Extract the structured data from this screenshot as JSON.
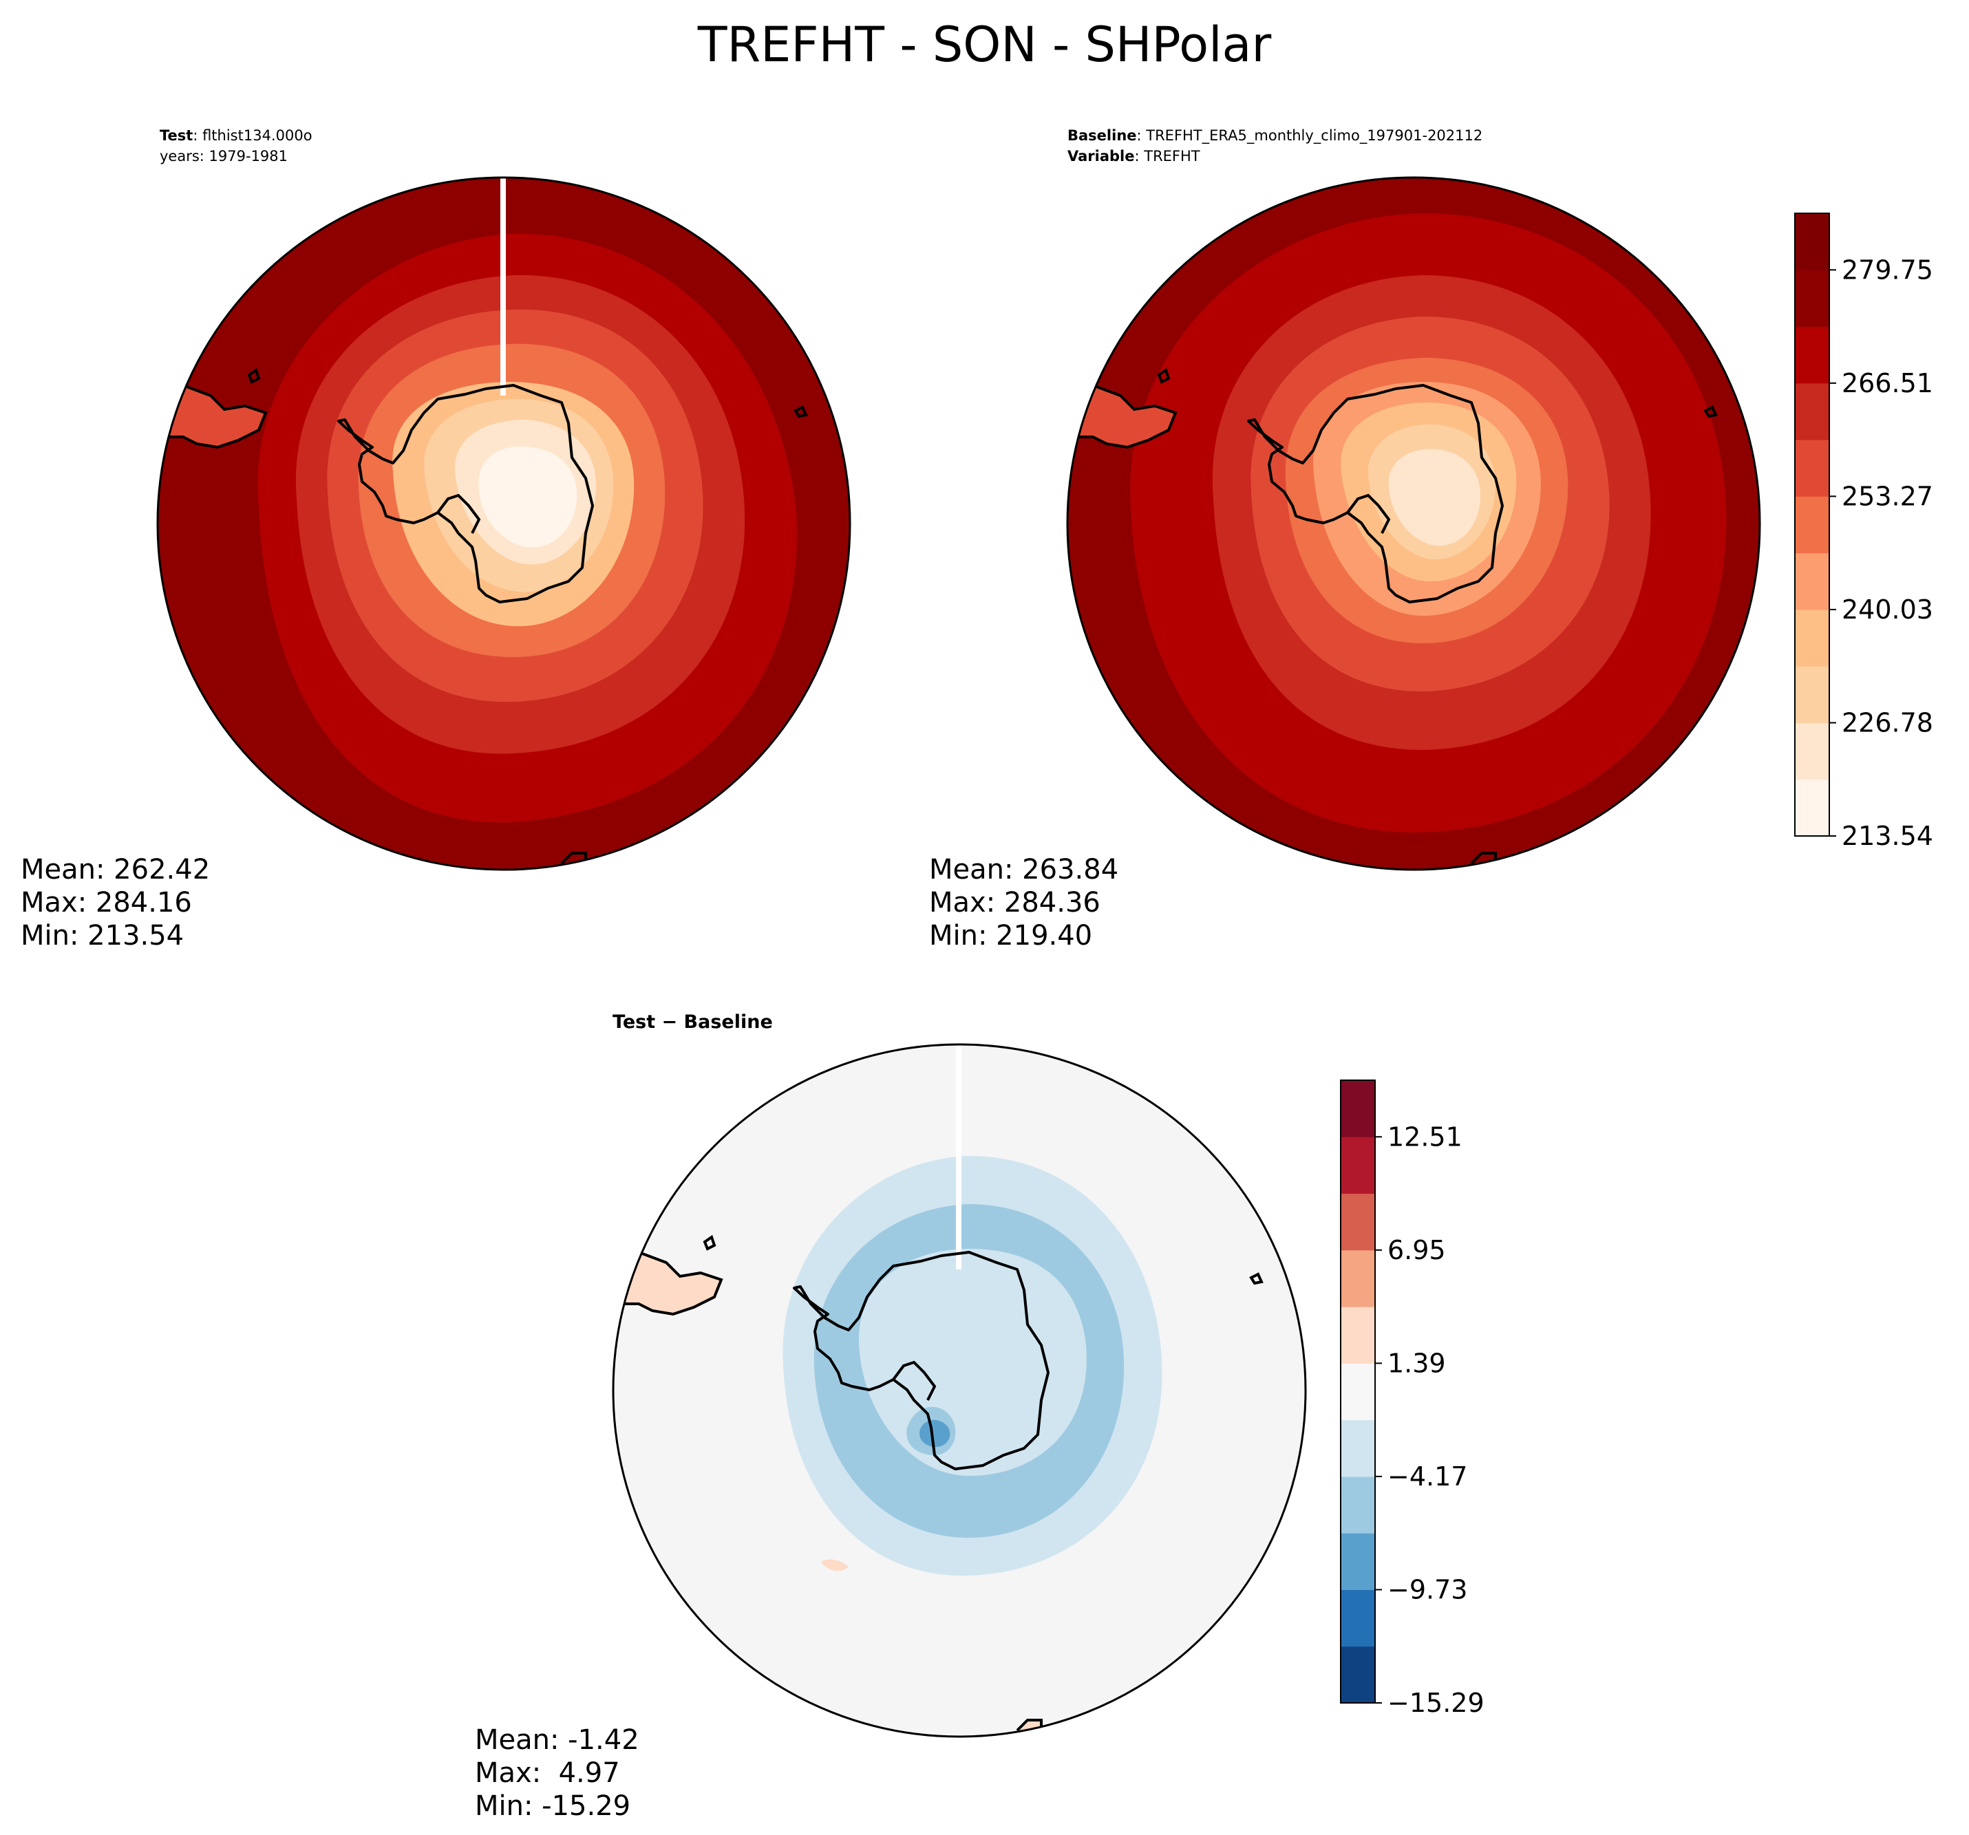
{
  "suptitle": "TREFHT - SON - SHPolar",
  "panels": {
    "test": {
      "header_line1_bold": "Test",
      "header_line1_rest": ": flthist134.000o",
      "header_line2": "years: 1979-1981",
      "stats": {
        "mean": "Mean: 262.42",
        "max": "Max: 284.16",
        "min": "Min: 213.54"
      }
    },
    "baseline": {
      "header_line1_bold": "Baseline",
      "header_line1_rest": ": TREFHT_ERA5_monthly_climo_197901-202112",
      "header_line2_bold": "Variable",
      "header_line2_rest": ": TREFHT",
      "stats": {
        "mean": "Mean: 263.84",
        "max": "Max: 284.36",
        "min": "Min: 219.40"
      }
    },
    "diff": {
      "title": "Test − Baseline",
      "stats": {
        "mean": "Mean: -1.42",
        "max": "Max:  4.97",
        "min": "Min: -15.29"
      }
    }
  },
  "colorbars": {
    "main": {
      "ticks": [
        "213.54",
        "226.78",
        "240.03",
        "253.27",
        "266.51",
        "279.75"
      ],
      "colors": [
        "#fff5eb",
        "#fee6ce",
        "#fdd0a2",
        "#fdbf86",
        "#fc9d6f",
        "#f07048",
        "#e04a34",
        "#c8291e",
        "#b30000",
        "#8c0000",
        "#7f0000"
      ]
    },
    "diff": {
      "ticks": [
        "−15.29",
        "−9.73",
        "−4.17",
        "1.39",
        "6.95",
        "12.51"
      ],
      "colors": [
        "#0e4281",
        "#2470b4",
        "#5aa0cd",
        "#9ecae1",
        "#d1e5f0",
        "#f7f7f7",
        "#fddbc7",
        "#f4a582",
        "#d6604d",
        "#b2182b",
        "#7f0a25"
      ]
    }
  },
  "map_colors": {
    "test_rings": [
      "#8e0000",
      "#b20000",
      "#c9291e",
      "#e04a34",
      "#f07048",
      "#fc9d6f",
      "#fdbf86",
      "#fdd0a2",
      "#fee6ce"
    ],
    "baseline_rings": [
      "#8e0000",
      "#b20000",
      "#c9291e",
      "#e04a34",
      "#f07048",
      "#fc9d6f",
      "#fdbf86",
      "#fdd0a2",
      "#fee6ce"
    ],
    "diff_background": "#f5f5f5",
    "diff_rings": [
      "#d1e5f0",
      "#9ecae1",
      "#d1e5f0"
    ]
  }
}
